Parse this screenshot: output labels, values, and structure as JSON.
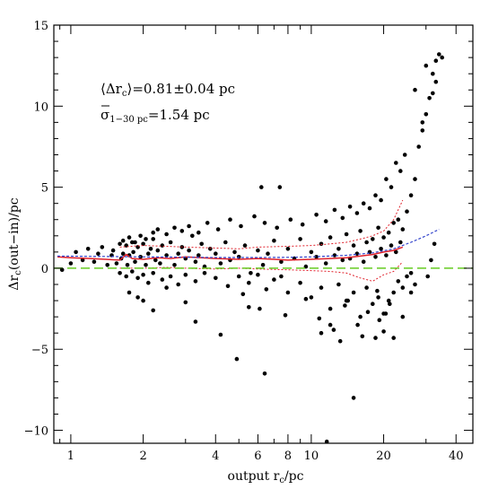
{
  "chart_data": {
    "type": "scatter",
    "title": "",
    "xlabel": "output r",
    "xlabel_sub": "c",
    "xlabel_suffix": "/pc",
    "ylabel_prefix": "Δr",
    "ylabel_sub": "c",
    "ylabel_suffix": "(out−in)/pc",
    "xscale": "log",
    "xlim": [
      0.85,
      47
    ],
    "ylim": [
      -10.8,
      15
    ],
    "xticks": [
      1,
      2,
      4,
      6,
      8,
      10,
      20,
      40
    ],
    "xtick_labels": [
      "1",
      "2",
      "4",
      "6",
      "8",
      "10",
      "20",
      "40"
    ],
    "yticks": [
      -10,
      -5,
      0,
      5,
      10,
      15
    ],
    "ytick_labels": [
      "−10",
      "−5",
      "0",
      "5",
      "10",
      "15"
    ],
    "grid": false,
    "colors": {
      "points": "#000000",
      "median": "#e0202a",
      "spread": "#e0202a",
      "fit": "#3344cc",
      "zero": "#66cc22"
    },
    "annotations": {
      "mean_label": "⟨Δr",
      "mean_sub": "c",
      "mean_value": "⟩=0.81±0.04 pc",
      "sigma_label": "σ",
      "sigma_sub": "1−30 pc",
      "sigma_value": "=1.54 pc"
    },
    "series": [
      {
        "kind": "points",
        "x": [
          0.92,
          1.0,
          1.05,
          1.12,
          1.18,
          1.25,
          1.3,
          1.35,
          1.42,
          1.48,
          1.5,
          1.55,
          1.6,
          1.62,
          1.65,
          1.7,
          1.72,
          1.75,
          1.8,
          1.82,
          1.85,
          1.9,
          1.95,
          2.0,
          2.05,
          2.1,
          2.15,
          2.2,
          2.25,
          2.3,
          2.35,
          2.4,
          2.5,
          2.6,
          2.7,
          2.8,
          2.9,
          3.0,
          3.1,
          3.2,
          3.3,
          3.4,
          3.5,
          3.6,
          3.8,
          4.0,
          4.2,
          4.4,
          4.6,
          4.8,
          5.0,
          5.3,
          5.6,
          6.0,
          6.3,
          6.6,
          7.0,
          7.5,
          8.0,
          8.5,
          9.0,
          9.5,
          10,
          10.5,
          11,
          11.5,
          12,
          12.5,
          13,
          13.5,
          14,
          14.5,
          15,
          15.5,
          16,
          16.5,
          17,
          17.5,
          18,
          18.5,
          19,
          19.5,
          20,
          20.5,
          21,
          21.5,
          22,
          22.5,
          23,
          23.5,
          24,
          25,
          26,
          27,
          28,
          29,
          30,
          31,
          32,
          33,
          34,
          1.6,
          1.7,
          1.8,
          1.9,
          2.0,
          2.1,
          2.2,
          2.4,
          2.6,
          2.8,
          3.0,
          3.3,
          3.6,
          4.0,
          4.5,
          5.0,
          5.5,
          6.0,
          6.5,
          7.0,
          7.5,
          8.0,
          9.0,
          10,
          11,
          12,
          13,
          14,
          15,
          16,
          17,
          18,
          19,
          20,
          21,
          22,
          23,
          24,
          25,
          26,
          1.65,
          1.75,
          1.85,
          1.95,
          2.05,
          2.2,
          2.3,
          2.5,
          2.7,
          2.9,
          3.1,
          3.4,
          3.7,
          4.1,
          4.6,
          5.1,
          5.8,
          6.4,
          7.2,
          8.2,
          9.2,
          10.5,
          11.5,
          12.5,
          13.5,
          14.5,
          15.5,
          16.5,
          17.5,
          18.5,
          19.5,
          20.5,
          21.5,
          22.5,
          23.5,
          24.5,
          27,
          29,
          30,
          32,
          33,
          35,
          6.2,
          7.4,
          6.1,
          11.0,
          12.0,
          13.2,
          16.3,
          19.2,
          20.4,
          22.0,
          24.0,
          26.0,
          27.0,
          30.5,
          31.5,
          32.5,
          4.9,
          4.2,
          6.4,
          15.0,
          11.6,
          18.5,
          14.2,
          3.3,
          2.0,
          1.75,
          2.5,
          2.2,
          1.9,
          3.0,
          5.2,
          5.5,
          7.8,
          9.5,
          10.8,
          12.4,
          13.8,
          15.6,
          17.2,
          18.8,
          20.0,
          21.2
        ],
        "y": [
          -0.1,
          0.3,
          1.0,
          0.5,
          1.2,
          0.4,
          0.9,
          1.3,
          0.2,
          0.8,
          1.1,
          0.3,
          1.5,
          0.6,
          0.9,
          1.4,
          0.2,
          0.8,
          1.6,
          1.0,
          0.4,
          1.3,
          0.7,
          1.5,
          0.2,
          0.9,
          1.2,
          1.8,
          0.5,
          1.1,
          0.3,
          1.4,
          0.8,
          1.6,
          0.2,
          0.9,
          1.3,
          0.6,
          1.1,
          2.0,
          0.4,
          0.8,
          1.5,
          0.1,
          1.2,
          0.9,
          0.3,
          1.6,
          0.5,
          1.0,
          0.7,
          1.4,
          -0.3,
          1.1,
          0.2,
          0.9,
          1.7,
          0.4,
          1.2,
          0.6,
          1.8,
          0.1,
          1.0,
          0.7,
          1.5,
          0.3,
          1.9,
          0.8,
          1.2,
          0.5,
          2.1,
          0.6,
          1.4,
          0.9,
          2.3,
          0.4,
          1.6,
          1.0,
          1.8,
          0.7,
          2.5,
          1.2,
          1.9,
          0.8,
          2.2,
          1.4,
          2.8,
          1.0,
          3.0,
          1.6,
          2.4,
          3.5,
          4.5,
          5.5,
          7.5,
          8.5,
          9.5,
          10.5,
          12.0,
          12.8,
          13.2,
          -0.3,
          -0.5,
          -0.2,
          -0.6,
          -0.4,
          -0.9,
          -0.3,
          -0.7,
          -0.5,
          -1.0,
          -0.4,
          -0.8,
          -0.3,
          -0.6,
          -1.1,
          -0.5,
          -0.9,
          -0.4,
          -1.3,
          -0.7,
          -0.5,
          -1.5,
          -0.9,
          -1.8,
          -1.2,
          -2.5,
          -1.0,
          -2.0,
          -1.5,
          -3.0,
          -1.2,
          -2.2,
          -1.8,
          -2.8,
          -2.0,
          -1.5,
          -0.8,
          -1.2,
          -0.5,
          -0.3,
          1.7,
          1.9,
          1.6,
          2.0,
          1.8,
          2.2,
          2.4,
          2.1,
          2.5,
          2.3,
          2.6,
          2.2,
          2.8,
          2.4,
          3.0,
          2.6,
          3.2,
          2.8,
          2.5,
          3.0,
          2.7,
          3.3,
          2.9,
          3.6,
          3.1,
          3.8,
          3.4,
          4.0,
          3.7,
          4.5,
          4.2,
          5.5,
          5.0,
          6.5,
          6.0,
          7.0,
          11.0,
          9.0,
          12.5,
          10.8,
          11.5,
          13.0,
          5.0,
          5.0,
          -2.5,
          -4.0,
          -3.5,
          -4.5,
          -4.2,
          -3.2,
          -2.8,
          -4.3,
          -3.0,
          -1.5,
          -1.0,
          -0.5,
          0.5,
          1.5,
          -5.6,
          -4.1,
          -6.5,
          -8.0,
          -10.7,
          -4.3,
          -2.0,
          -3.3,
          -2.0,
          -1.5,
          -1.2,
          -2.6,
          -1.8,
          -2.1,
          -1.6,
          -2.4,
          -2.9,
          -1.9,
          -3.1,
          -3.8,
          -2.3,
          -3.5,
          -2.7,
          -1.4,
          -3.9,
          -2.2
        ]
      },
      {
        "kind": "median",
        "name": "",
        "x": [
          0.88,
          1.0,
          1.2,
          1.4,
          1.6,
          1.7,
          1.8,
          2.0,
          2.3,
          2.6,
          3.0,
          3.5,
          4.0,
          5.0,
          6.0,
          7.0,
          8.0,
          10,
          12,
          14,
          16,
          18,
          20,
          22,
          24
        ],
        "y": [
          0.7,
          0.65,
          0.6,
          0.55,
          0.5,
          0.85,
          0.6,
          0.55,
          0.65,
          0.6,
          0.7,
          0.65,
          0.6,
          0.55,
          0.6,
          0.55,
          0.5,
          0.55,
          0.6,
          0.65,
          0.75,
          0.85,
          1.0,
          1.1,
          1.3
        ]
      },
      {
        "kind": "spread-upper",
        "name": "",
        "x": [
          1.6,
          2.0,
          2.5,
          3.0,
          4.0,
          5.0,
          6.0,
          8.0,
          10,
          12,
          14,
          16,
          18,
          20,
          22,
          24
        ],
        "y": [
          1.3,
          1.4,
          1.35,
          1.3,
          1.25,
          1.2,
          1.3,
          1.35,
          1.4,
          1.5,
          1.6,
          1.8,
          2.0,
          2.3,
          3.0,
          4.2
        ]
      },
      {
        "kind": "spread-lower",
        "name": "",
        "x": [
          1.6,
          2.0,
          2.5,
          3.0,
          4.0,
          5.0,
          6.0,
          8.0,
          10,
          12,
          14,
          16,
          18,
          20,
          22,
          24
        ],
        "y": [
          0.0,
          0.0,
          0.05,
          0.0,
          -0.05,
          0.0,
          -0.05,
          -0.1,
          -0.15,
          -0.2,
          -0.3,
          -0.6,
          -0.8,
          -0.4,
          -0.2,
          0.4
        ]
      },
      {
        "kind": "fit",
        "name": "",
        "x": [
          0.88,
          1.5,
          2.0,
          3.0,
          4.0,
          6.0,
          8.0,
          10,
          14,
          18,
          22,
          26,
          30,
          34
        ],
        "y": [
          0.75,
          0.72,
          0.7,
          0.68,
          0.66,
          0.66,
          0.67,
          0.7,
          0.8,
          0.95,
          1.2,
          1.6,
          2.0,
          2.4
        ]
      },
      {
        "kind": "zero",
        "name": "",
        "x": [
          0.85,
          47
        ],
        "y": [
          0,
          0
        ]
      }
    ]
  }
}
